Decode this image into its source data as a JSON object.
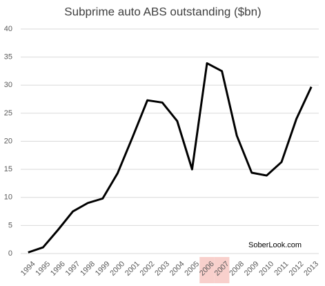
{
  "chart_data": {
    "type": "line",
    "title": "Subprime auto ABS outstanding ($bn)",
    "categories": [
      "1994",
      "1995",
      "1996",
      "1997",
      "1998",
      "1999",
      "2000",
      "2001",
      "2002",
      "2003",
      "2004",
      "2005",
      "2006",
      "2007",
      "2008",
      "2009",
      "2010",
      "2011",
      "2012",
      "2013"
    ],
    "values": [
      0.2,
      1.1,
      4.2,
      7.5,
      9.0,
      9.8,
      14.3,
      20.7,
      27.3,
      26.9,
      23.6,
      15.0,
      33.9,
      32.5,
      21.0,
      14.4,
      13.9,
      16.3,
      24.0,
      29.7
    ],
    "color": "#000000",
    "ylim": [
      0,
      40
    ],
    "yticks": [
      0,
      5,
      10,
      15,
      20,
      25,
      30,
      35,
      40
    ],
    "grid": true,
    "highlight": [
      "2006",
      "2007"
    ],
    "highlight_color": "#f8d0cc",
    "annotation": "SoberLook.com"
  }
}
